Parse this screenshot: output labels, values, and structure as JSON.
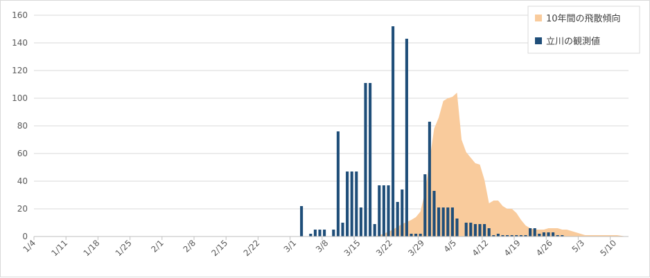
{
  "chart_data": {
    "type": "bar",
    "grid": true,
    "legend_position": "top-right",
    "ylim": [
      0,
      160
    ],
    "y_ticks": [
      "0",
      "20",
      "40",
      "60",
      "80",
      "100",
      "120",
      "140",
      "160"
    ],
    "x_ticks": [
      "1/4",
      "1/11",
      "1/18",
      "1/25",
      "2/1",
      "2/8",
      "2/15",
      "2/22",
      "3/1",
      "3/8",
      "3/15",
      "3/22",
      "3/29",
      "4/5",
      "4/12",
      "4/19",
      "4/26",
      "5/3",
      "5/10"
    ],
    "series": [
      {
        "name": "10年間の飛散傾向",
        "type": "area",
        "color": "#f9cb9c",
        "points": [
          [
            "3/18",
            0
          ],
          [
            "3/20",
            2
          ],
          [
            "3/22",
            5
          ],
          [
            "3/24",
            9
          ],
          [
            "3/26",
            12
          ],
          [
            "3/27",
            14
          ],
          [
            "3/28",
            18
          ],
          [
            "3/29",
            32
          ],
          [
            "3/30",
            55
          ],
          [
            "3/31",
            78
          ],
          [
            "4/1",
            86
          ],
          [
            "4/2",
            98
          ],
          [
            "4/3",
            100
          ],
          [
            "4/4",
            101
          ],
          [
            "4/5",
            104
          ],
          [
            "4/6",
            70
          ],
          [
            "4/7",
            61
          ],
          [
            "4/8",
            57
          ],
          [
            "4/9",
            53
          ],
          [
            "4/10",
            52
          ],
          [
            "4/11",
            41
          ],
          [
            "4/12",
            24
          ],
          [
            "4/13",
            26
          ],
          [
            "4/14",
            26
          ],
          [
            "4/15",
            22
          ],
          [
            "4/16",
            20
          ],
          [
            "4/17",
            20
          ],
          [
            "4/18",
            17
          ],
          [
            "4/19",
            12
          ],
          [
            "4/20",
            8
          ],
          [
            "4/21",
            6
          ],
          [
            "4/22",
            5
          ],
          [
            "4/23",
            5
          ],
          [
            "4/24",
            5
          ],
          [
            "4/25",
            6
          ],
          [
            "4/26",
            6
          ],
          [
            "4/27",
            6
          ],
          [
            "4/28",
            5
          ],
          [
            "4/29",
            5
          ],
          [
            "4/30",
            4
          ],
          [
            "5/1",
            3
          ],
          [
            "5/2",
            2
          ],
          [
            "5/3",
            1
          ],
          [
            "5/4",
            1
          ],
          [
            "5/5",
            1
          ],
          [
            "5/6",
            1
          ],
          [
            "5/7",
            1
          ],
          [
            "5/8",
            1
          ],
          [
            "5/9",
            1
          ],
          [
            "5/10",
            1
          ],
          [
            "5/11",
            0.5
          ],
          [
            "5/12",
            0
          ]
        ]
      },
      {
        "name": "立川の観測値",
        "type": "bar",
        "color": "#1f4e79",
        "points": [
          [
            "3/2",
            22
          ],
          [
            "3/4",
            2
          ],
          [
            "3/5",
            5
          ],
          [
            "3/6",
            5
          ],
          [
            "3/7",
            5
          ],
          [
            "3/9",
            5
          ],
          [
            "3/10",
            76
          ],
          [
            "3/11",
            10
          ],
          [
            "3/12",
            47
          ],
          [
            "3/13",
            47
          ],
          [
            "3/14",
            47
          ],
          [
            "3/15",
            21
          ],
          [
            "3/16",
            111
          ],
          [
            "3/17",
            111
          ],
          [
            "3/18",
            9
          ],
          [
            "3/19",
            37
          ],
          [
            "3/20",
            37
          ],
          [
            "3/21",
            37
          ],
          [
            "3/22",
            152
          ],
          [
            "3/23",
            25
          ],
          [
            "3/24",
            34
          ],
          [
            "3/25",
            143
          ],
          [
            "3/26",
            2
          ],
          [
            "3/27",
            2
          ],
          [
            "3/28",
            2
          ],
          [
            "3/29",
            45
          ],
          [
            "3/30",
            83
          ],
          [
            "3/31",
            33
          ],
          [
            "4/1",
            21
          ],
          [
            "4/2",
            21
          ],
          [
            "4/3",
            21
          ],
          [
            "4/4",
            21
          ],
          [
            "4/5",
            13
          ],
          [
            "4/7",
            10
          ],
          [
            "4/8",
            10
          ],
          [
            "4/9",
            9
          ],
          [
            "4/10",
            9
          ],
          [
            "4/11",
            9
          ],
          [
            "4/12",
            6
          ],
          [
            "4/13",
            1
          ],
          [
            "4/14",
            2
          ],
          [
            "4/15",
            1
          ],
          [
            "4/16",
            1
          ],
          [
            "4/17",
            1
          ],
          [
            "4/18",
            1
          ],
          [
            "4/19",
            1
          ],
          [
            "4/20",
            1
          ],
          [
            "4/21",
            6
          ],
          [
            "4/22",
            6
          ],
          [
            "4/23",
            2
          ],
          [
            "4/24",
            3
          ],
          [
            "4/25",
            3
          ],
          [
            "4/26",
            3
          ],
          [
            "4/27",
            1
          ],
          [
            "4/28",
            1
          ]
        ]
      }
    ]
  }
}
